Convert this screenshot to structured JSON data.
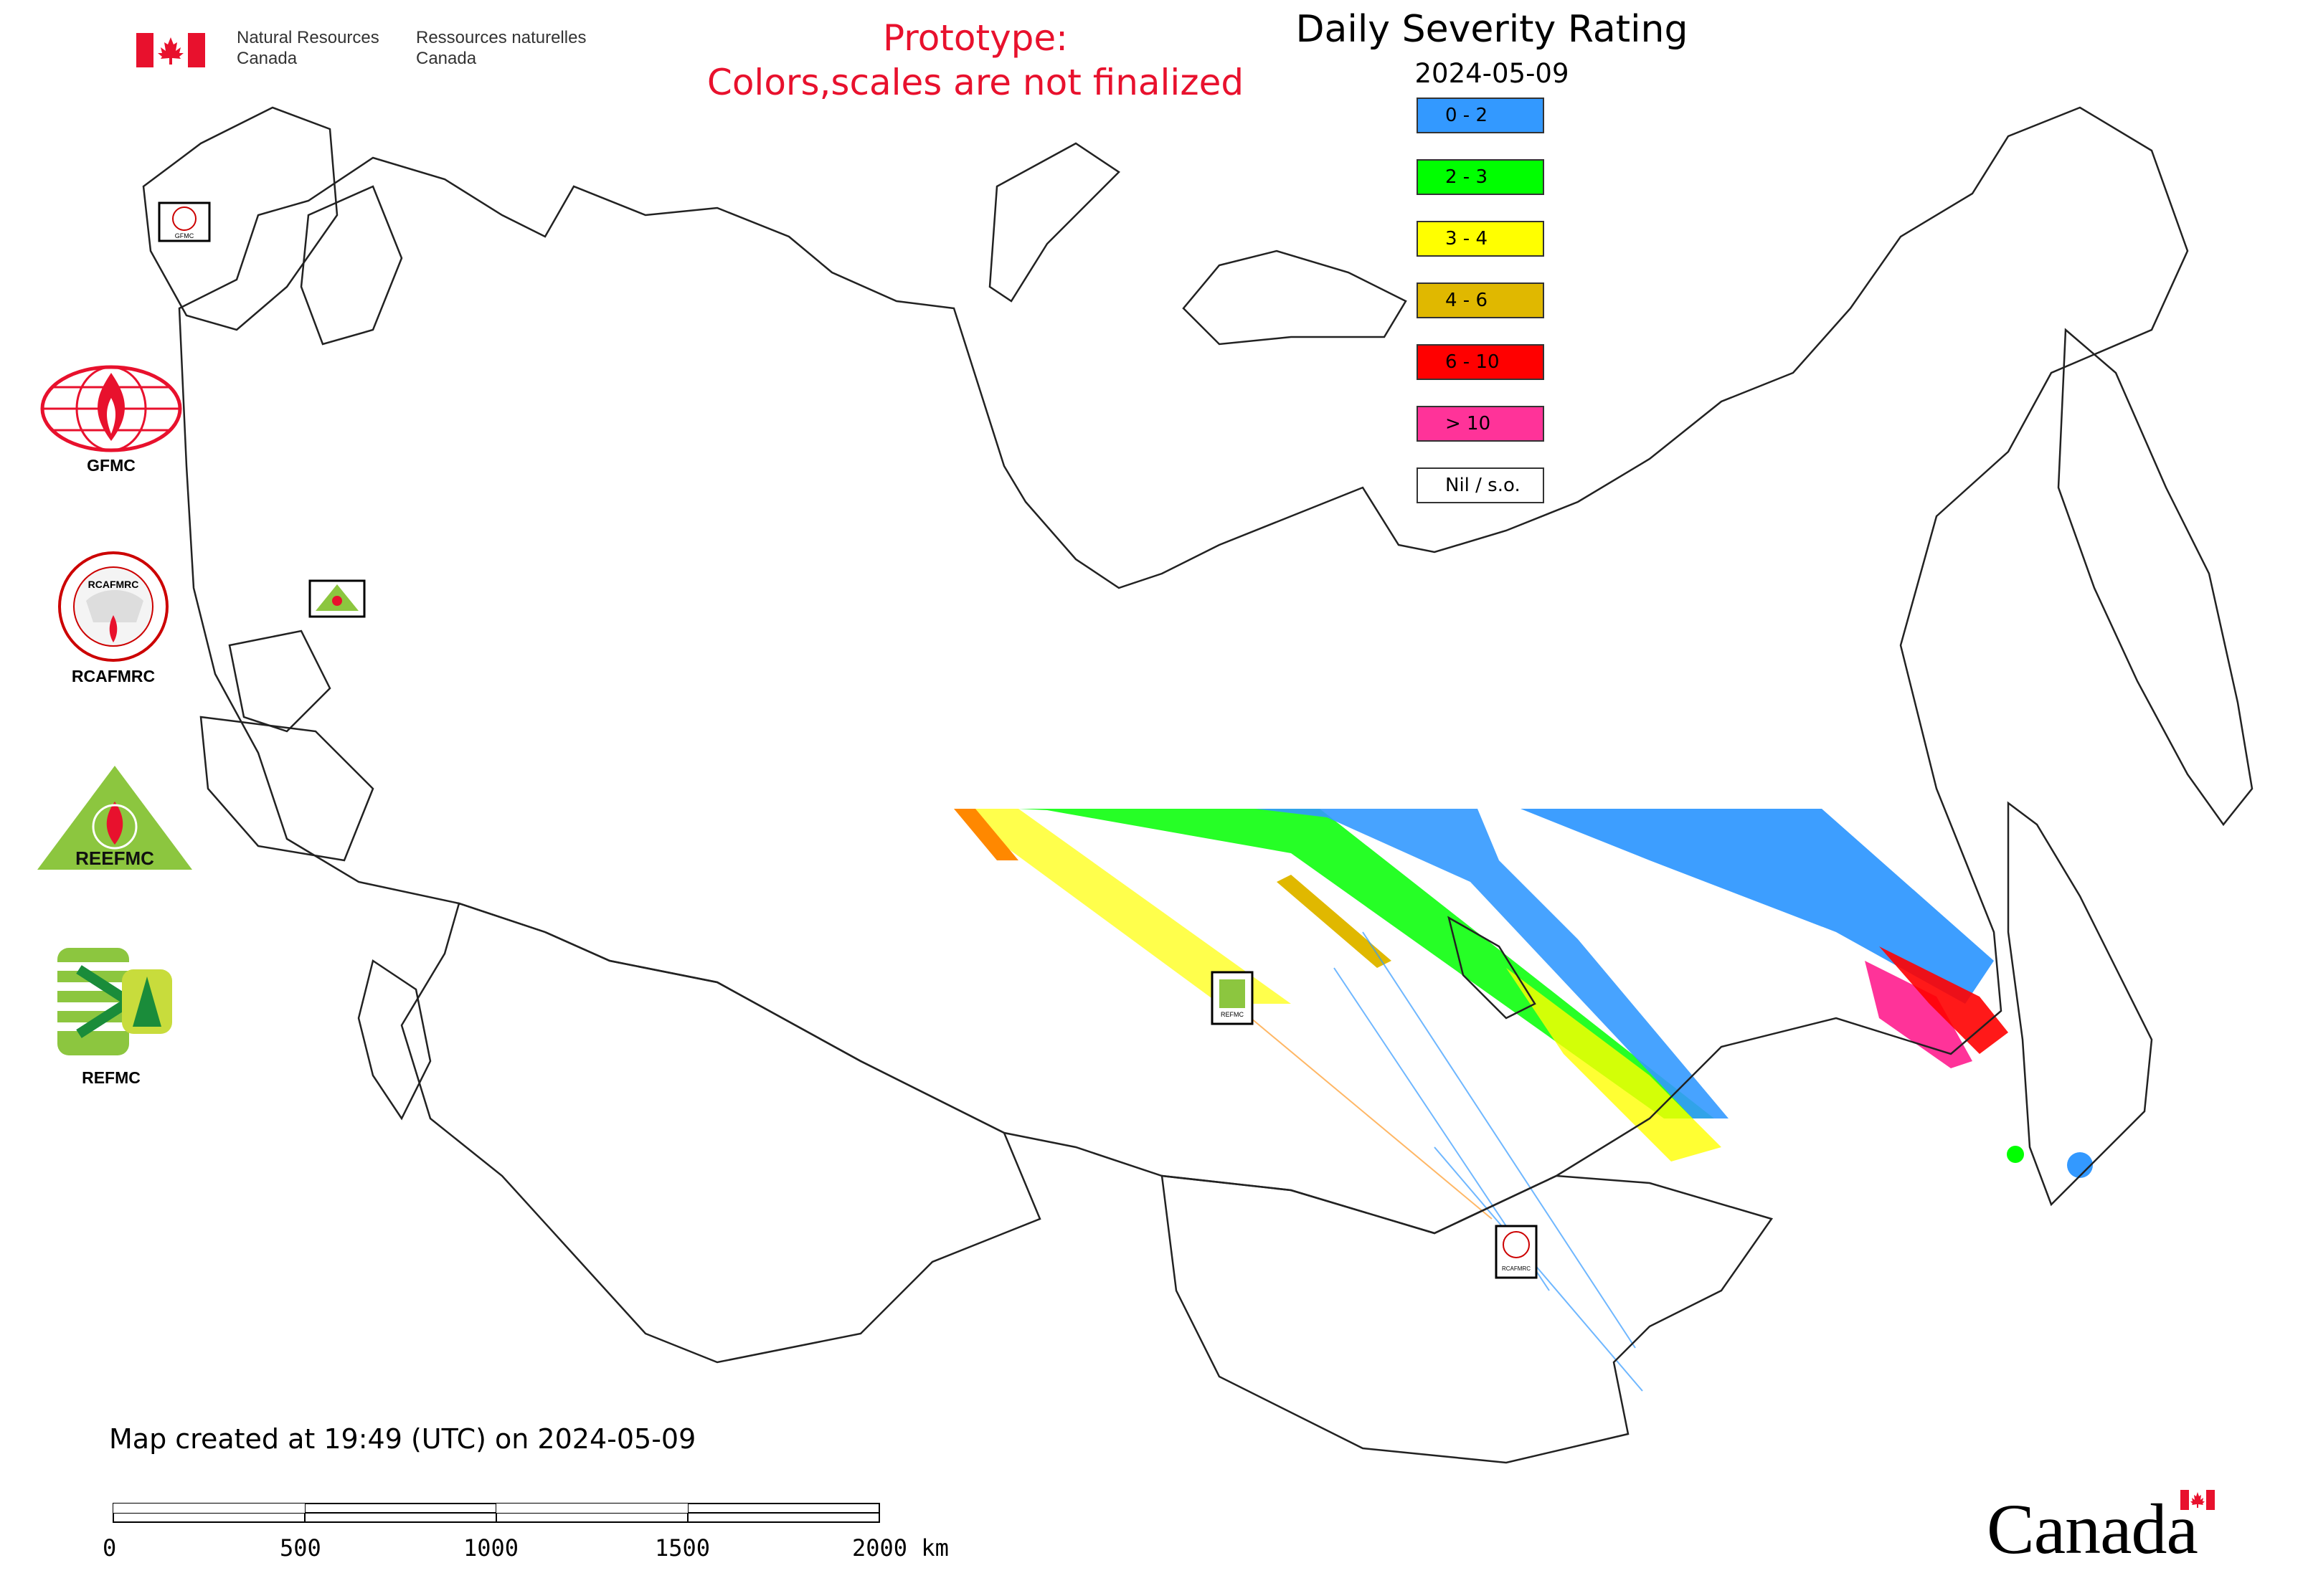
{
  "header": {
    "department_en_line1": "Natural Resources",
    "department_en_line2": "Canada",
    "department_fr_line1": "Ressources naturelles",
    "department_fr_line2": "Canada",
    "prototype_line1": "Prototype:",
    "prototype_line2": "Colors,scales are not finalized",
    "prototype_color": "#e8112d"
  },
  "map": {
    "title": "Daily Severity Rating",
    "date": "2024-05-09",
    "created_text": "Map created at 19:49 (UTC) on 2024-05-09",
    "wordmark": "Canada"
  },
  "legend": [
    {
      "label": "0 - 2",
      "color": "#3399ff"
    },
    {
      "label": "2 - 3",
      "color": "#00ff00"
    },
    {
      "label": "3 - 4",
      "color": "#ffff00"
    },
    {
      "label": "4 - 6",
      "color": "#e0b800"
    },
    {
      "label": "6 - 10",
      "color": "#ff0000"
    },
    {
      "label": "> 10",
      "color": "#ff3399"
    },
    {
      "label": "Nil / s.o.",
      "color": "#ffffff"
    }
  ],
  "logos": [
    {
      "name": "GFMC",
      "icon": "gfmc-globe-icon"
    },
    {
      "name": "RCAFMRC",
      "icon": "rcafmrc-seal-icon"
    },
    {
      "name": "REEFMC",
      "icon": "reefmc-triangle-icon"
    },
    {
      "name": "REFMC",
      "icon": "refmc-sigma-icon"
    }
  ],
  "scale_bar": {
    "ticks": [
      "0",
      "500",
      "1000",
      "1500"
    ],
    "end_label": "2000 km"
  }
}
